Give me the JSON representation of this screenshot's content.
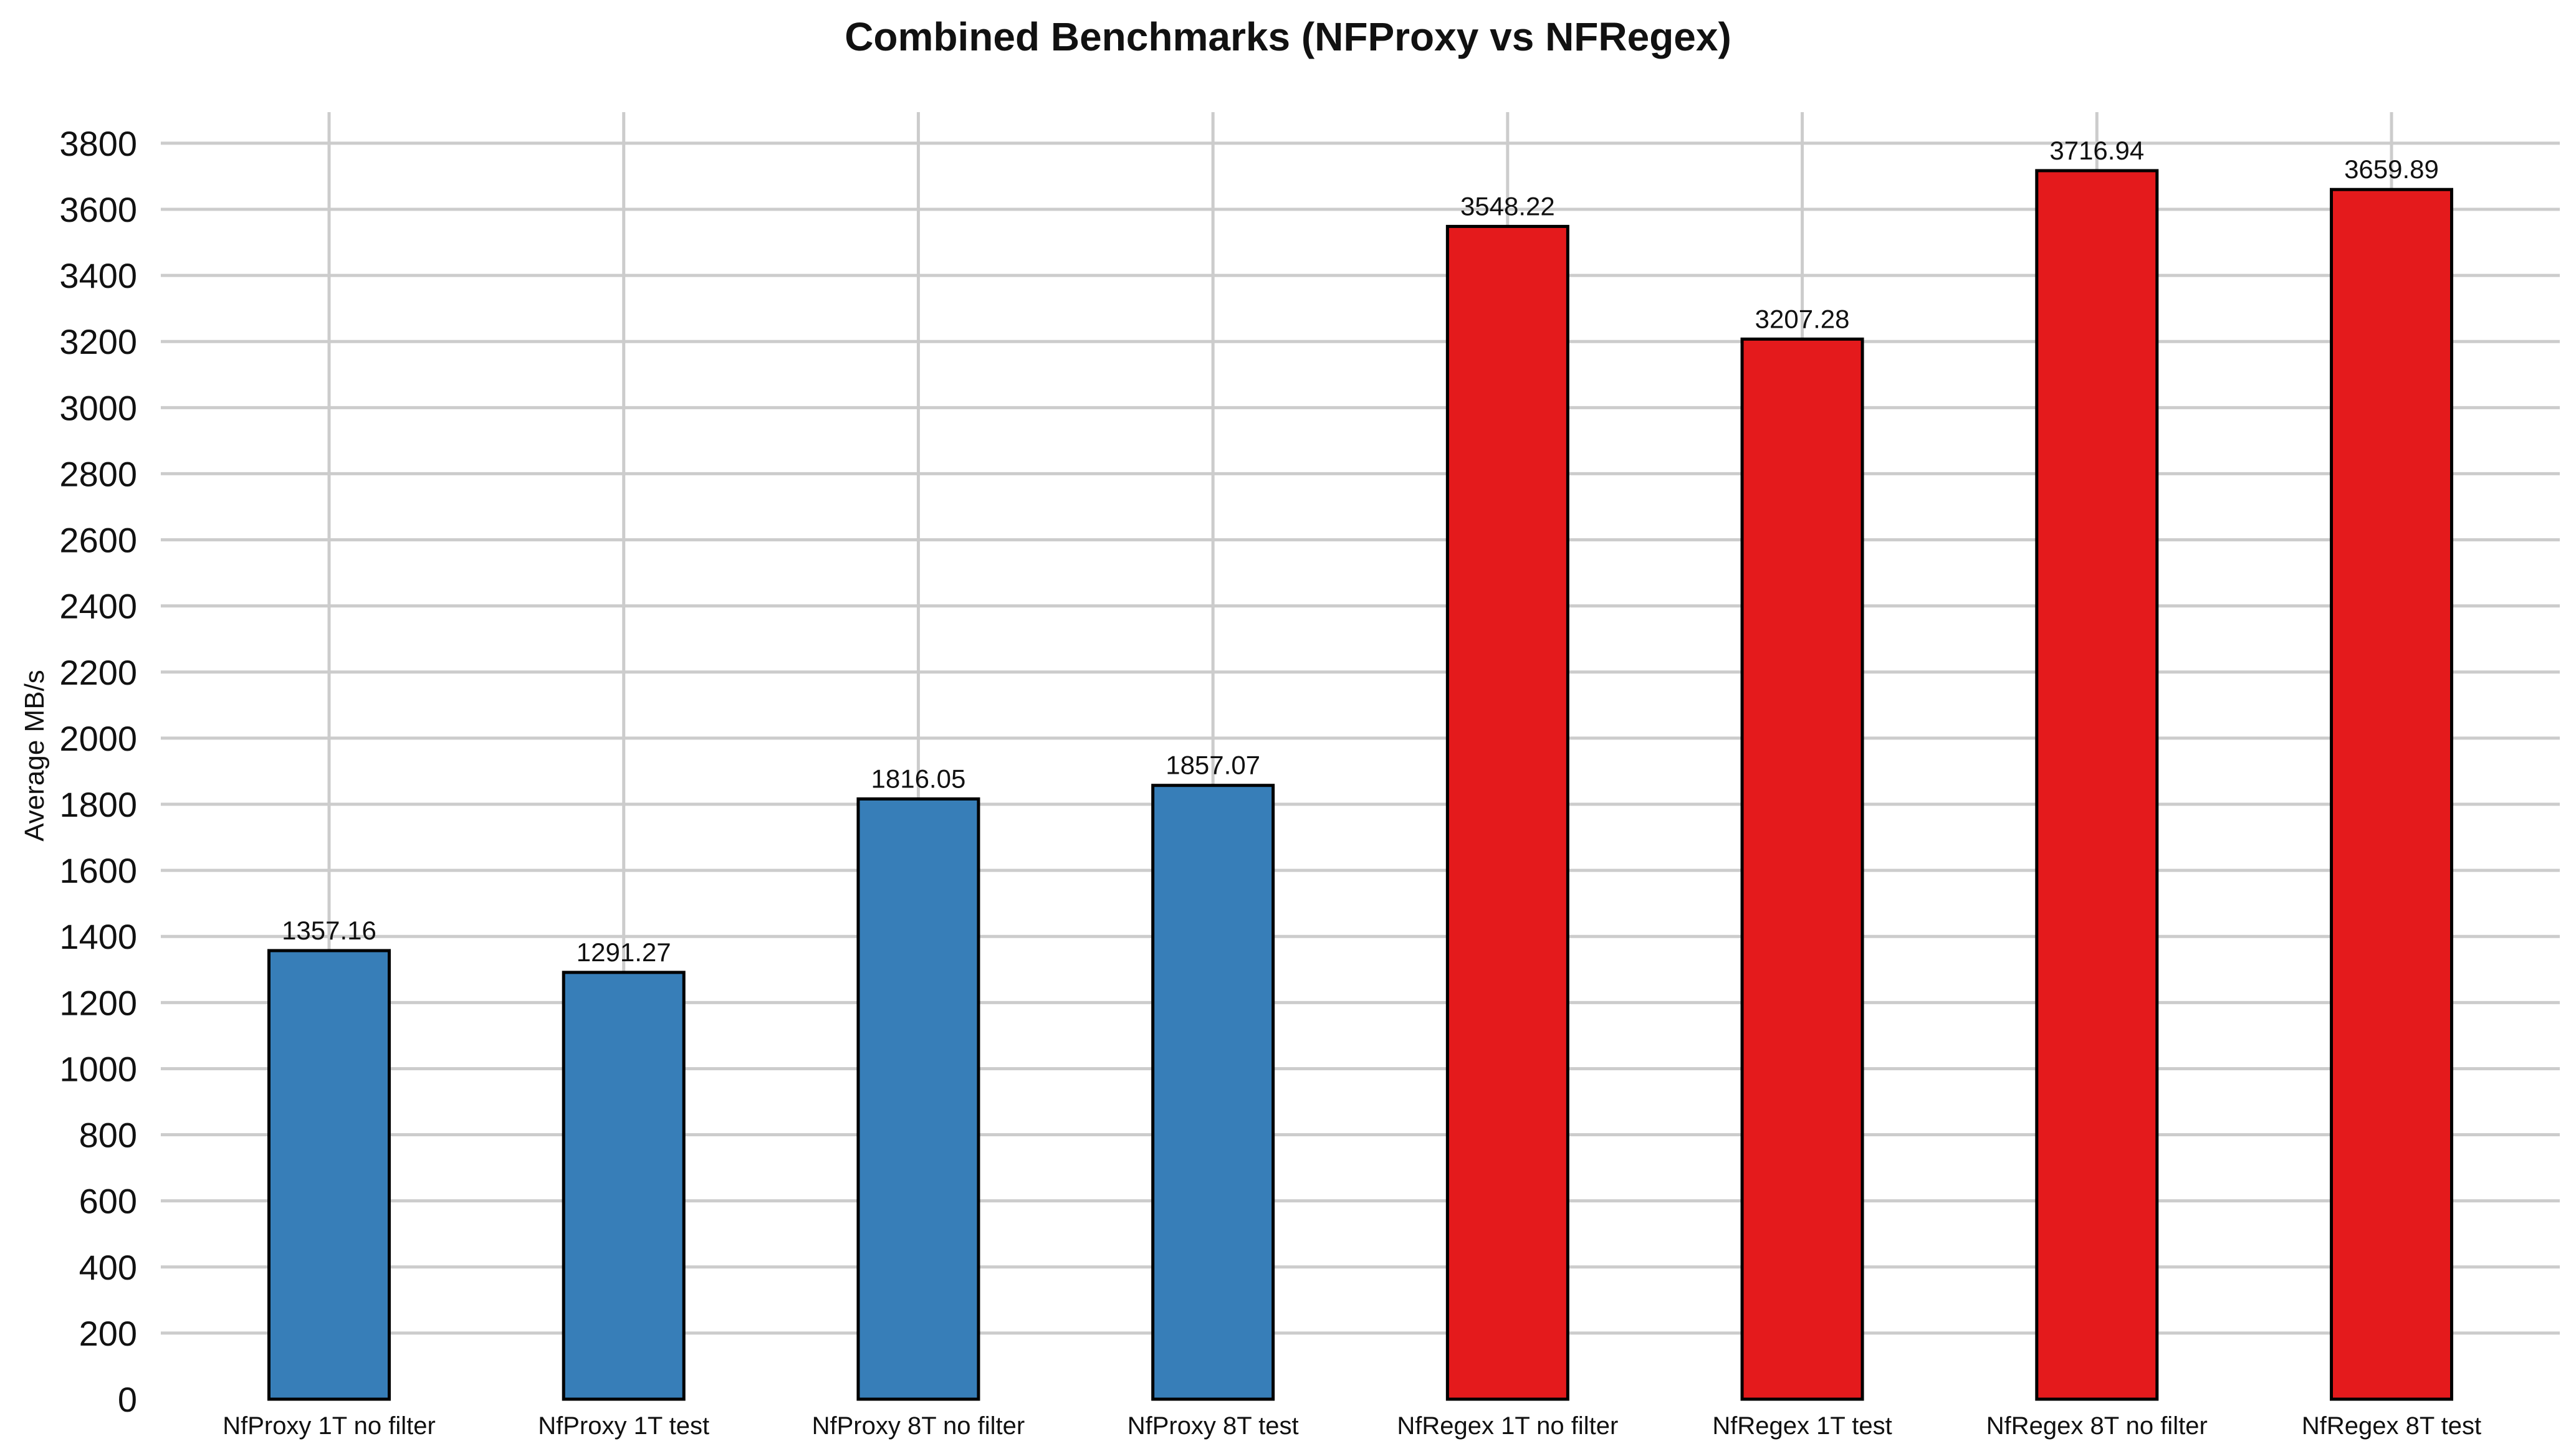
{
  "chart_data": {
    "type": "bar",
    "title": "Combined Benchmarks (NFProxy vs NFRegex)",
    "xlabel": "",
    "ylabel": "Average MB/s",
    "categories": [
      "NfProxy 1T no filter",
      "NfProxy 1T test",
      "NfProxy 8T no filter",
      "NfProxy 8T test",
      "NfRegex 1T no filter",
      "NfRegex 1T test",
      "NfRegex 8T no filter",
      "NfRegex 8T test"
    ],
    "values": [
      1357.16,
      1291.27,
      1816.05,
      1857.07,
      3548.22,
      3207.28,
      3716.94,
      3659.89
    ],
    "value_labels": [
      "1357.16",
      "1291.27",
      "1816.05",
      "1857.07",
      "3548.22",
      "3207.28",
      "3716.94",
      "3659.89"
    ],
    "bar_colors": [
      "#377eb8",
      "#377eb8",
      "#377eb8",
      "#377eb8",
      "#e41a1c",
      "#e41a1c",
      "#e41a1c",
      "#e41a1c"
    ],
    "bar_border_color": "#000000",
    "y_ticks": [
      0,
      200,
      400,
      600,
      800,
      1000,
      1200,
      1400,
      1600,
      1800,
      2000,
      2200,
      2400,
      2600,
      2800,
      3000,
      3200,
      3400,
      3600,
      3800
    ],
    "ylim": [
      0,
      3894
    ],
    "grid": true,
    "grid_color": "#cccccc",
    "background": "#ffffff",
    "legend_position": "none",
    "text_color": "#111111"
  }
}
